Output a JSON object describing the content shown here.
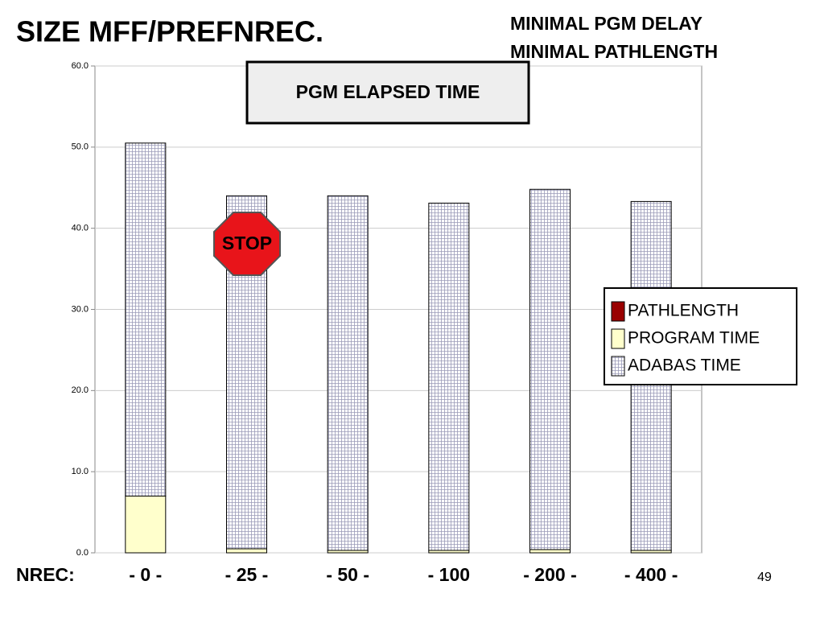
{
  "slide_title": "SIZE MFF/PREFNREC.",
  "notes": [
    "MINIMAL PGM DELAY",
    "MINIMAL PATHLENGTH"
  ],
  "stop_sign": "STOP",
  "page_number": "49",
  "chart_data": {
    "type": "bar",
    "stacked": true,
    "title": "PGM ELAPSED TIME",
    "x_label": "NREC:",
    "categories": [
      "- 0 -",
      "- 25 -",
      "- 50 -",
      "- 100",
      "- 200 -",
      "- 400 -"
    ],
    "series": [
      {
        "name": "PATHLENGTH",
        "color": "#990000",
        "values": [
          0,
          0,
          0,
          0,
          0,
          0
        ]
      },
      {
        "name": "PROGRAM TIME",
        "color": "#ffffcc",
        "values": [
          7.0,
          0.5,
          0.3,
          0.3,
          0.4,
          0.3
        ]
      },
      {
        "name": "ADABAS TIME",
        "color": "#9a9ab8",
        "values": [
          43.5,
          43.5,
          43.7,
          42.8,
          44.4,
          43.0
        ]
      }
    ],
    "ylim": [
      0,
      60
    ],
    "yticks": [
      {
        "value": 0,
        "label": "0.0"
      },
      {
        "value": 10,
        "label": "10.0"
      },
      {
        "value": 20,
        "label": "20.0"
      },
      {
        "value": 30,
        "label": "30.0"
      },
      {
        "value": 40,
        "label": "40.0"
      },
      {
        "value": 50,
        "label": "50.0"
      },
      {
        "value": 60,
        "label": "60.0"
      }
    ],
    "grid": true
  }
}
